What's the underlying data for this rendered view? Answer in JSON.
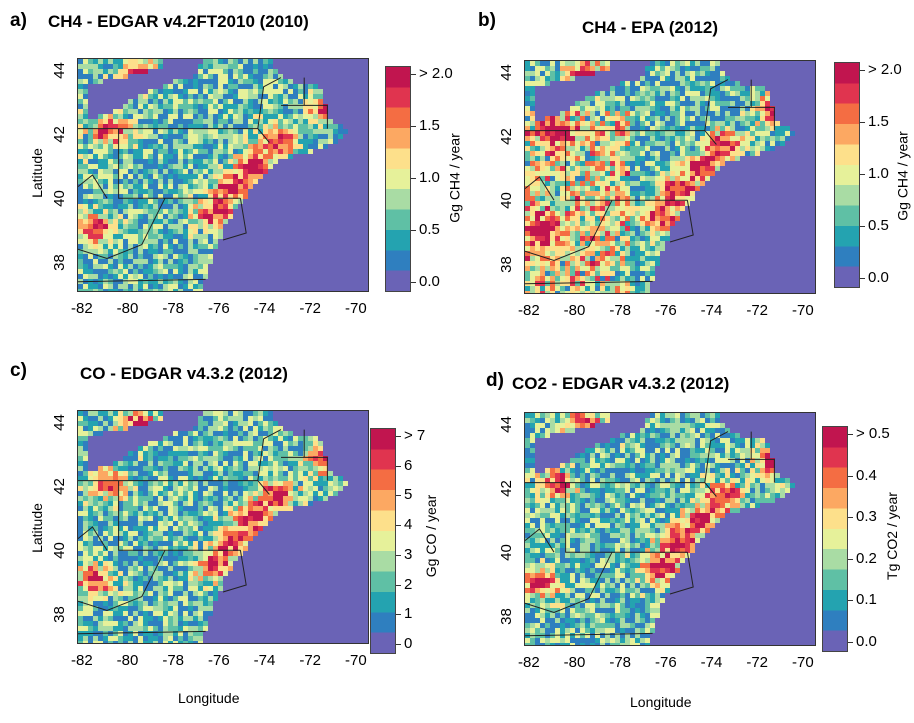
{
  "panels": [
    {
      "id": "a",
      "label": "a)",
      "title": "CH4 - EDGAR v4.2FT2010 (2010)",
      "xticks": [
        "-82",
        "-80",
        "-78",
        "-76",
        "-74",
        "-72",
        "-70"
      ],
      "yticks": [
        "44",
        "42",
        "40",
        "38"
      ],
      "ylabel": "Latitude",
      "xlabel": "",
      "cbar_ticks": [
        "> 2.0",
        "1.5",
        "1.0",
        "0.5",
        "0.0"
      ],
      "cbar_unit": "Gg CH4 / year"
    },
    {
      "id": "b",
      "label": "b)",
      "title": "CH4 - EPA (2012)",
      "xticks": [
        "-82",
        "-80",
        "-78",
        "-76",
        "-74",
        "-72",
        "-70"
      ],
      "yticks": [
        "44",
        "42",
        "40",
        "38"
      ],
      "ylabel": "",
      "xlabel": "",
      "cbar_ticks": [
        "> 2.0",
        "1.5",
        "1.0",
        "0.5",
        "0.0"
      ],
      "cbar_unit": "Gg CH4 / year"
    },
    {
      "id": "c",
      "label": "c)",
      "title": "CO - EDGAR v4.3.2 (2012)",
      "xticks": [
        "-82",
        "-80",
        "-78",
        "-76",
        "-74",
        "-72",
        "-70"
      ],
      "yticks": [
        "44",
        "42",
        "40",
        "38"
      ],
      "ylabel": "Latitude",
      "xlabel": "Longitude",
      "cbar_ticks": [
        "> 7",
        "6",
        "5",
        "4",
        "3",
        "2",
        "1",
        "0"
      ],
      "cbar_unit": "Gg CO / year"
    },
    {
      "id": "d",
      "label": "d)",
      "title": "CO2 - EDGAR v4.3.2 (2012)",
      "xticks": [
        "-82",
        "-80",
        "-78",
        "-76",
        "-74",
        "-72",
        "-70"
      ],
      "yticks": [
        "44",
        "42",
        "40",
        "38"
      ],
      "ylabel": "",
      "xlabel": "Longitude",
      "cbar_ticks": [
        "> 0.5",
        "0.4",
        "0.3",
        "0.2",
        "0.1",
        "0.0"
      ],
      "cbar_unit": "Tg CO2 / year"
    }
  ],
  "colors": {
    "ocean": "#6a63b6",
    "scale": [
      "#6a63b6",
      "#2f7fbf",
      "#24a3b0",
      "#5fc0a5",
      "#a9dca4",
      "#e6f19a",
      "#fde08b",
      "#fca862",
      "#f46d43",
      "#e0344f",
      "#c1154f"
    ]
  }
}
